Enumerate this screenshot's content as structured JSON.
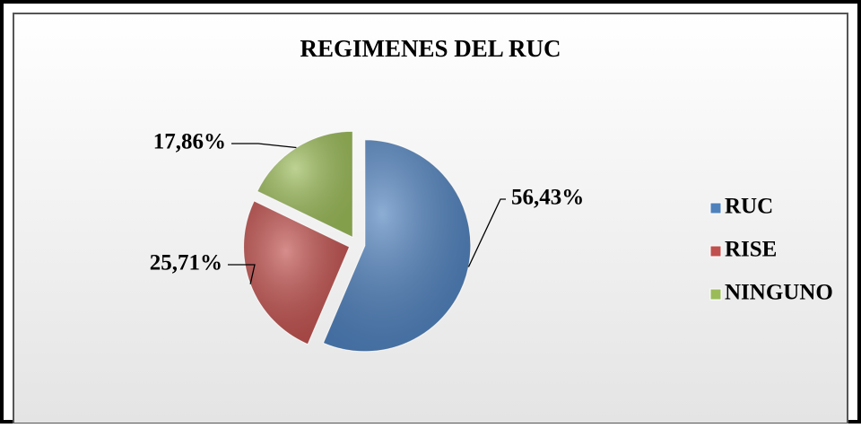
{
  "chart_data": {
    "type": "pie",
    "title": "REGIMENES DEL RUC",
    "categories": [
      "RUC",
      "RISE",
      "NINGUNO"
    ],
    "values": [
      56.43,
      25.71,
      17.86
    ],
    "value_labels": [
      "56,43%",
      "25,71%",
      "17,86%"
    ],
    "colors": [
      "#4f81bd",
      "#c0504d",
      "#9bbb59"
    ],
    "legend": "right"
  }
}
